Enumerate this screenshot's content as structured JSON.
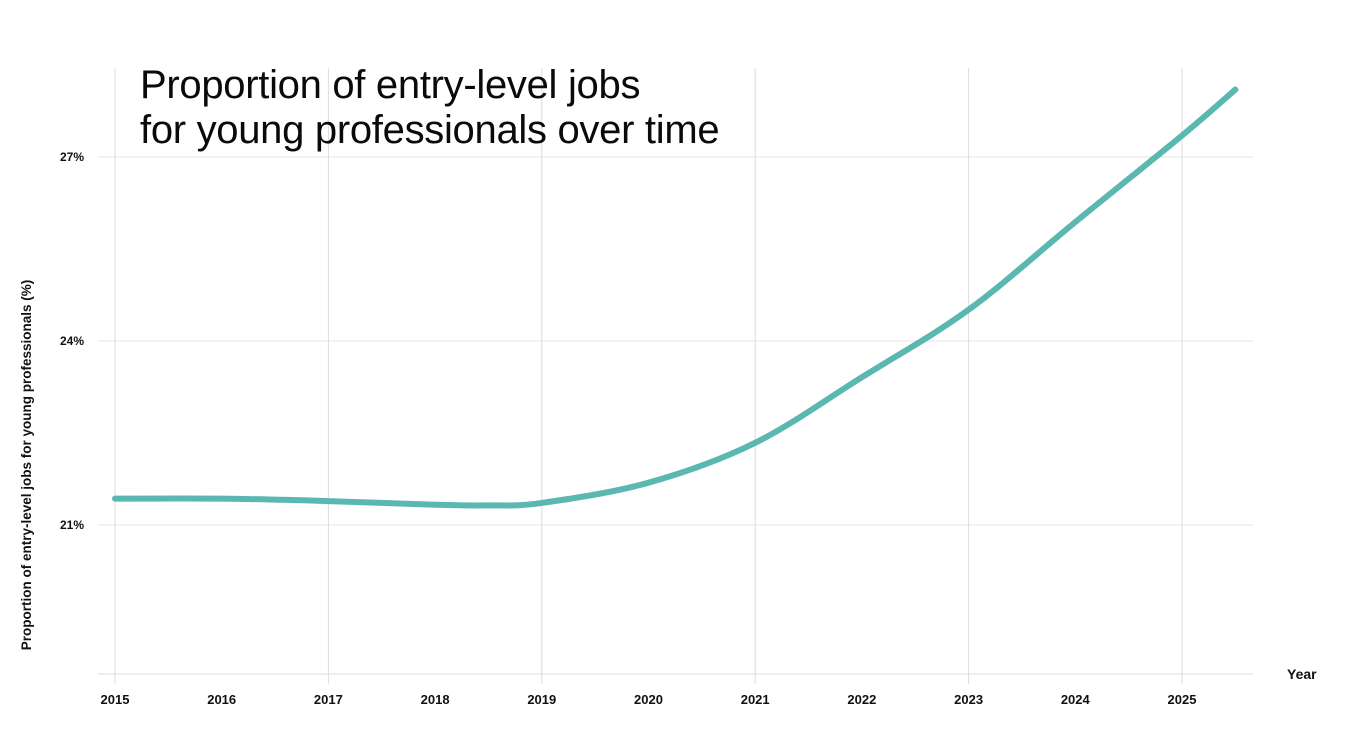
{
  "chart_data": {
    "type": "line",
    "title": "Proportion of entry-level jobs for young professionals over time",
    "title_lines": [
      "Proportion of entry-level jobs",
      "for young professionals over time"
    ],
    "xlabel": "Year",
    "ylabel": "Proportion of entry-level jobs for young professionals (%)",
    "x_ticks": [
      "2015",
      "2016",
      "2017",
      "2018",
      "2019",
      "2020",
      "2021",
      "2022",
      "2023",
      "2024",
      "2025"
    ],
    "y_ticks": [
      "21%",
      "24%",
      "27%"
    ],
    "y_tick_values": [
      21,
      24,
      27
    ],
    "xlim": [
      2014.85,
      2025.67
    ],
    "ylim": [
      18.57,
      28.6
    ],
    "grid": true,
    "vertical_grid_years": [
      2015,
      2017,
      2019,
      2021,
      2023,
      2025
    ],
    "legend": null,
    "series": [
      {
        "name": "Proportion of entry-level jobs (%)",
        "color": "#5bb8b0",
        "x": [
          2015,
          2016,
          2017,
          2018,
          2018.5,
          2019,
          2020,
          2021,
          2022,
          2023,
          2024,
          2025,
          2025.5
        ],
        "values": [
          21.43,
          21.43,
          21.39,
          21.33,
          21.32,
          21.36,
          21.69,
          22.34,
          23.41,
          24.51,
          25.94,
          27.35,
          28.1
        ]
      }
    ]
  }
}
